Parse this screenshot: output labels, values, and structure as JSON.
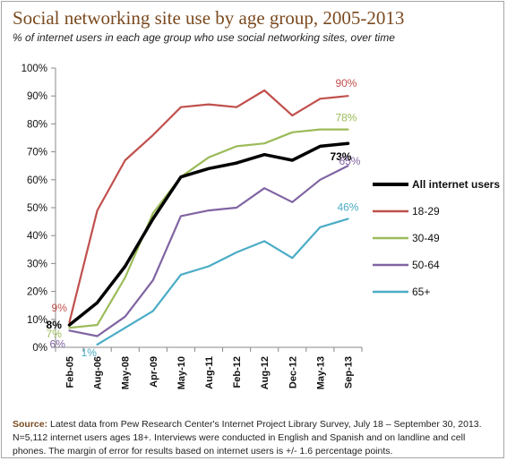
{
  "header": {
    "title": "Social networking site use by age group, 2005-2013",
    "subtitle": "% of internet users in each age group who use social networking sites, over time"
  },
  "footer": {
    "source_label": "Source:",
    "source_text": " Latest data from Pew Research Center's Internet Project Library Survey, July 18 – September 30, 2013. N=5,112 internet users ages 18+. Interviews were conducted in English and Spanish and on landline and cell phones.  The margin of error for results based on internet users is +/- 1.6 percentage points."
  },
  "chart_data": {
    "type": "line",
    "title": "Social networking site use by age group, 2005-2013",
    "xlabel": "",
    "ylabel": "",
    "ylim": [
      0,
      100
    ],
    "y_ticks": [
      0,
      10,
      20,
      30,
      40,
      50,
      60,
      70,
      80,
      90,
      100
    ],
    "y_tick_suffix": "%",
    "grid": false,
    "legend_position": "right",
    "x": [
      "Feb-05",
      "Aug-06",
      "May-08",
      "Apr-09",
      "May-10",
      "Aug-11",
      "Feb-12",
      "Aug-12",
      "Dec-12",
      "May-13",
      "Sep-13"
    ],
    "series": [
      {
        "name": "All internet users",
        "color": "#000000",
        "values": [
          8,
          16,
          29,
          46,
          61,
          64,
          66,
          69,
          67,
          72,
          73
        ],
        "start_label": "8%",
        "end_label": "73%"
      },
      {
        "name": "18-29",
        "color": "#c0504d",
        "values": [
          9,
          49,
          67,
          76,
          86,
          87,
          86,
          92,
          83,
          89,
          90
        ],
        "start_label": "9%",
        "end_label": "90%"
      },
      {
        "name": "30-49",
        "color": "#9bbb59",
        "values": [
          7,
          8,
          25,
          48,
          61,
          68,
          72,
          73,
          77,
          78,
          78
        ],
        "start_label": "7%",
        "end_label": "78%"
      },
      {
        "name": "50-64",
        "color": "#8064a2",
        "values": [
          6,
          4,
          11,
          24,
          47,
          49,
          50,
          57,
          52,
          60,
          65
        ],
        "start_label": "6%",
        "end_label": "65%"
      },
      {
        "name": "65+",
        "color": "#4bacc6",
        "values": [
          null,
          1,
          7,
          13,
          26,
          29,
          34,
          38,
          32,
          43,
          46
        ],
        "start_label": "1%",
        "end_label": "46%"
      }
    ]
  }
}
